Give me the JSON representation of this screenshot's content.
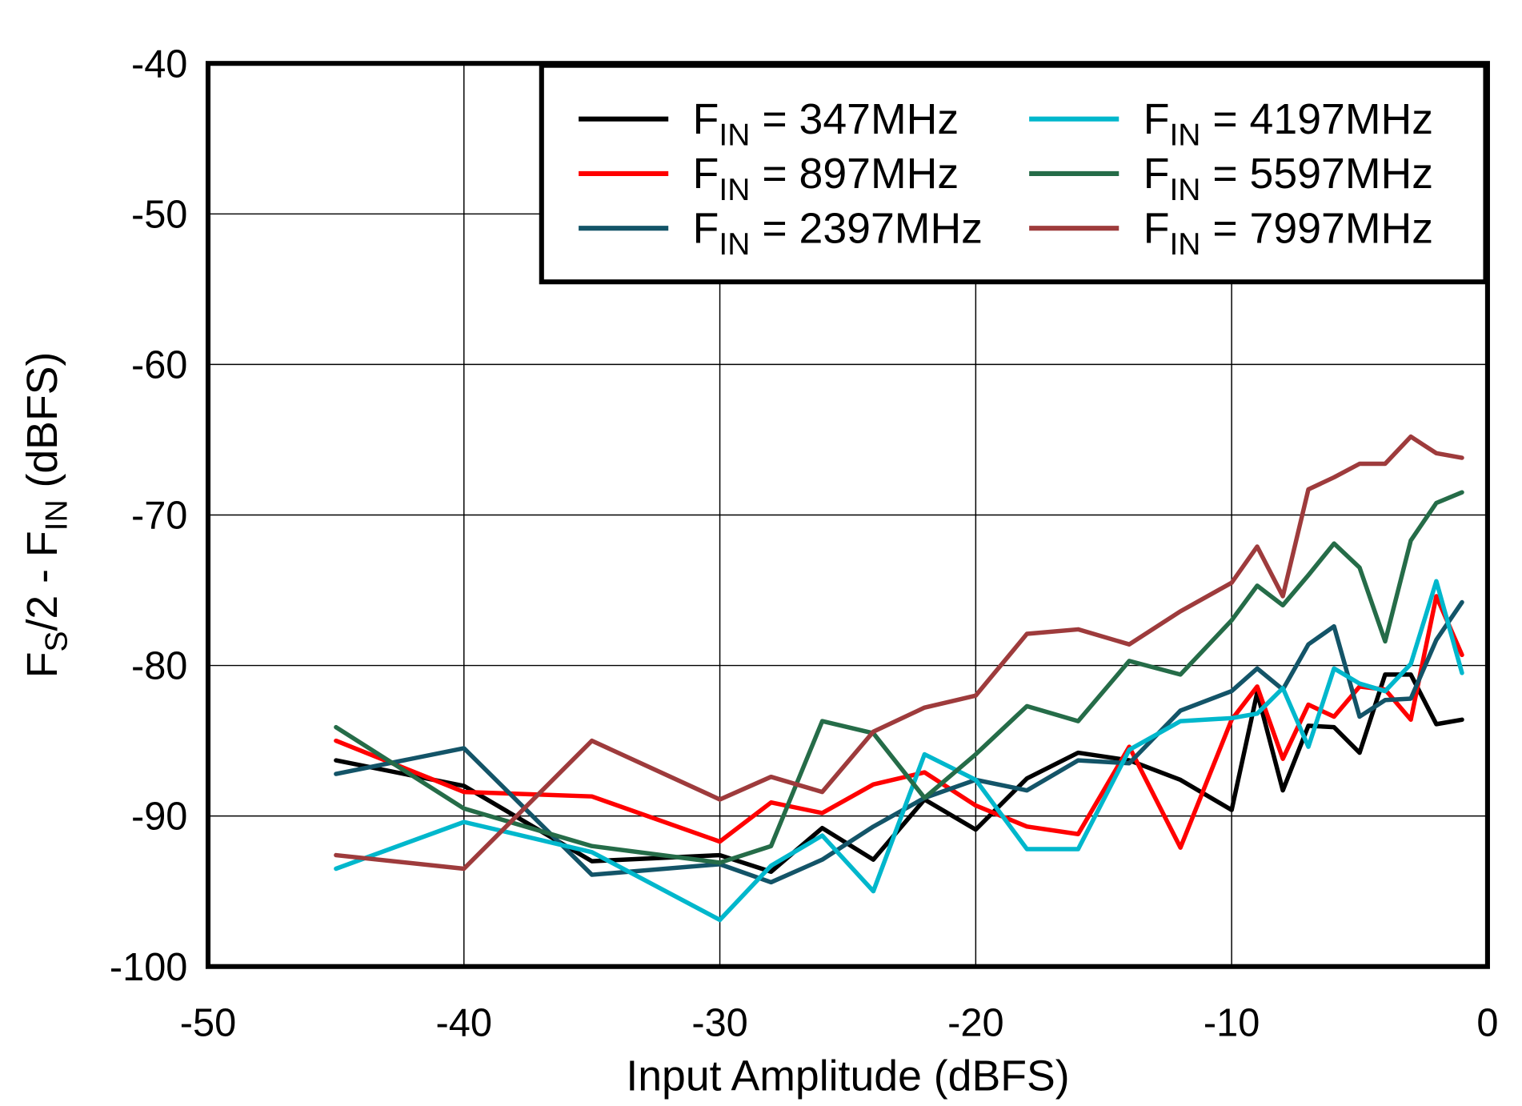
{
  "chart_data": {
    "type": "line",
    "title": "",
    "xlabel": "Input Amplitude  (dBFS)",
    "ylabel_parts": [
      {
        "t": "F"
      },
      {
        "t": "S",
        "sub": true
      },
      {
        "t": "/2 - F"
      },
      {
        "t": "IN",
        "sub": true
      },
      {
        "t": "  (dBFS)"
      }
    ],
    "xlim": [
      -50,
      0
    ],
    "ylim": [
      -100,
      -40
    ],
    "xticks": [
      "-50",
      "-40",
      "-30",
      "-20",
      "-10",
      "0"
    ],
    "yticks": [
      "-40",
      "-50",
      "-60",
      "-70",
      "-80",
      "-90",
      "-100"
    ],
    "grid": true,
    "legend_position": "top-right",
    "x": [
      -45,
      -40,
      -35,
      -30,
      -28,
      -26,
      -24,
      -22,
      -20,
      -18,
      -16,
      -14,
      -12,
      -10,
      -9,
      -8,
      -7,
      -6,
      -5,
      -4,
      -3,
      -2,
      -1
    ],
    "series": [
      {
        "name": "FIN = 347MHz",
        "color": "#000000",
        "values": [
          -86.3,
          -88.0,
          -93.0,
          -92.6,
          -93.7,
          -90.8,
          -92.9,
          -88.9,
          -90.9,
          -87.5,
          -85.8,
          -86.3,
          -87.6,
          -89.6,
          -81.8,
          -88.3,
          -84.0,
          -84.1,
          -85.8,
          -80.6,
          -80.6,
          -83.9,
          -83.6
        ]
      },
      {
        "name": "FIN = 897MHz",
        "color": "#ff0000",
        "values": [
          -85.0,
          -88.4,
          -88.7,
          -91.7,
          -89.1,
          -89.8,
          -87.9,
          -87.1,
          -89.3,
          -90.7,
          -91.2,
          -85.4,
          -92.1,
          -83.6,
          -81.4,
          -86.2,
          -82.6,
          -83.4,
          -81.4,
          -81.6,
          -83.6,
          -75.4,
          -79.3
        ]
      },
      {
        "name": "FIN = 2397MHz",
        "color": "#135468",
        "values": [
          -87.2,
          -85.5,
          -93.9,
          -93.2,
          -94.4,
          -92.9,
          -90.7,
          -88.8,
          -87.6,
          -88.3,
          -86.3,
          -86.5,
          -83.0,
          -81.7,
          -80.2,
          -81.6,
          -78.6,
          -77.4,
          -83.4,
          -82.3,
          -82.2,
          -78.3,
          -75.8
        ]
      },
      {
        "name": "FIN = 4197MHz",
        "color": "#00b7cc",
        "values": [
          -93.5,
          -90.4,
          -92.4,
          -96.9,
          -93.3,
          -91.3,
          -95.0,
          -85.9,
          -87.6,
          -92.2,
          -92.2,
          -85.6,
          -83.7,
          -83.5,
          -83.2,
          -81.5,
          -85.4,
          -80.2,
          -81.2,
          -81.7,
          -79.9,
          -74.4,
          -80.5
        ]
      },
      {
        "name": "FIN = 5597MHz",
        "color": "#256c48",
        "values": [
          -84.1,
          -89.5,
          -92.0,
          -93.1,
          -92.0,
          -83.7,
          -84.5,
          -88.8,
          -85.9,
          -82.7,
          -83.7,
          -79.7,
          -80.6,
          -77.0,
          -74.7,
          -76.0,
          -74.0,
          -71.9,
          -73.5,
          -78.4,
          -71.7,
          -69.2,
          -68.5
        ]
      },
      {
        "name": "FIN = 7997MHz",
        "color": "#9e3b3c",
        "values": [
          -92.6,
          -93.5,
          -85.0,
          -88.9,
          -87.4,
          -88.4,
          -84.4,
          -82.8,
          -82.0,
          -77.9,
          -77.6,
          -78.6,
          -76.4,
          -74.5,
          -72.1,
          -75.4,
          -68.3,
          -67.5,
          -66.6,
          -66.6,
          -64.8,
          -65.9,
          -66.2
        ]
      }
    ]
  }
}
